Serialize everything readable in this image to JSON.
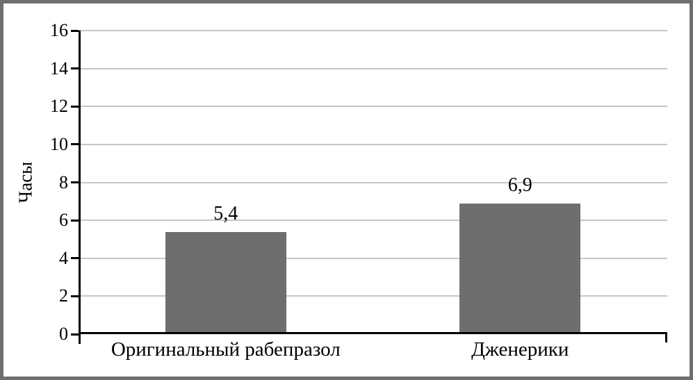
{
  "chart_data": {
    "type": "bar",
    "categories": [
      "Оригинальный рабепразол",
      "Дженерики"
    ],
    "values": [
      5.4,
      6.9
    ],
    "value_labels": [
      "5,4",
      "6,9"
    ],
    "title": "",
    "xlabel": "",
    "ylabel": "Часы",
    "ylim": [
      0,
      16
    ],
    "yticks": [
      0,
      2,
      4,
      6,
      8,
      10,
      12,
      14,
      16
    ],
    "grid": "horizontal",
    "legend": "none",
    "colors": {
      "bar_fill": "#6E6E6E",
      "gridline": "#C6C6C6",
      "axis": "#000000",
      "text": "#000000",
      "frame_border": "#6E6E6E",
      "background": "#FFFFFF"
    }
  }
}
